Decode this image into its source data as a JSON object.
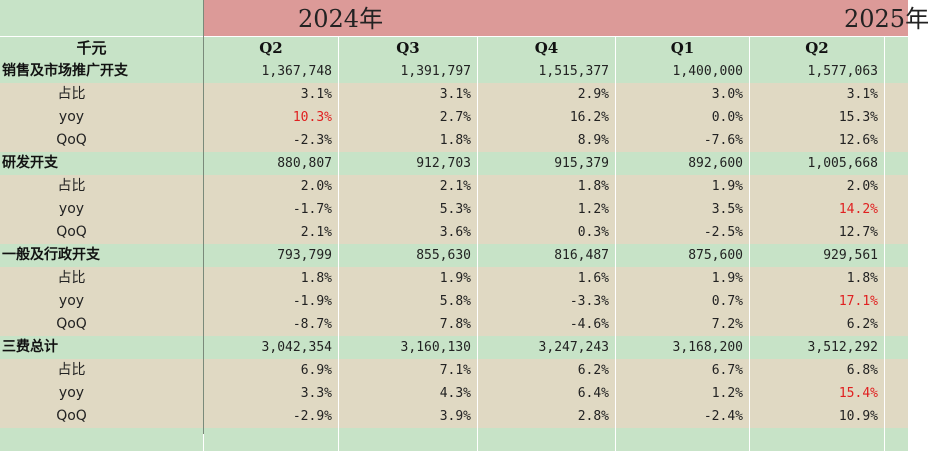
{
  "years": {
    "y2024": "2024年",
    "y2025": "2025年"
  },
  "header": {
    "unit": "千元",
    "quarters": [
      "Q2",
      "Q3",
      "Q4",
      "Q1",
      "Q2"
    ]
  },
  "rows": [
    {
      "label": "销售及市场推广开支",
      "kind": "main",
      "values": [
        "1,367,748",
        "1,391,797",
        "1,515,377",
        "1,400,000",
        "1,577,063"
      ],
      "red": []
    },
    {
      "label": "占比",
      "kind": "sub",
      "values": [
        "3.1%",
        "3.1%",
        "2.9%",
        "3.0%",
        "3.1%"
      ],
      "red": []
    },
    {
      "label": "yoy",
      "kind": "sub",
      "values": [
        "10.3%",
        "2.7%",
        "16.2%",
        "0.0%",
        "15.3%"
      ],
      "red": [
        0
      ]
    },
    {
      "label": "QoQ",
      "kind": "sub",
      "values": [
        "-2.3%",
        "1.8%",
        "8.9%",
        "-7.6%",
        "12.6%"
      ],
      "red": []
    },
    {
      "label": "研发开支",
      "kind": "main",
      "values": [
        "880,807",
        "912,703",
        "915,379",
        "892,600",
        "1,005,668"
      ],
      "red": []
    },
    {
      "label": "占比",
      "kind": "sub",
      "values": [
        "2.0%",
        "2.1%",
        "1.8%",
        "1.9%",
        "2.0%"
      ],
      "red": []
    },
    {
      "label": "yoy",
      "kind": "sub",
      "values": [
        "-1.7%",
        "5.3%",
        "1.2%",
        "3.5%",
        "14.2%"
      ],
      "red": [
        4
      ]
    },
    {
      "label": "QoQ",
      "kind": "sub",
      "values": [
        "2.1%",
        "3.6%",
        "0.3%",
        "-2.5%",
        "12.7%"
      ],
      "red": []
    },
    {
      "label": "一般及行政开支",
      "kind": "main",
      "values": [
        "793,799",
        "855,630",
        "816,487",
        "875,600",
        "929,561"
      ],
      "red": []
    },
    {
      "label": "占比",
      "kind": "sub",
      "values": [
        "1.8%",
        "1.9%",
        "1.6%",
        "1.9%",
        "1.8%"
      ],
      "red": []
    },
    {
      "label": "yoy",
      "kind": "sub",
      "values": [
        "-1.9%",
        "5.8%",
        "-3.3%",
        "0.7%",
        "17.1%"
      ],
      "red": [
        4
      ]
    },
    {
      "label": "QoQ",
      "kind": "sub",
      "values": [
        "-8.7%",
        "7.8%",
        "-4.6%",
        "7.2%",
        "6.2%"
      ],
      "red": []
    },
    {
      "label": "三费总计",
      "kind": "main",
      "values": [
        "3,042,354",
        "3,160,130",
        "3,247,243",
        "3,168,200",
        "3,512,292"
      ],
      "red": []
    },
    {
      "label": "占比",
      "kind": "sub",
      "values": [
        "6.9%",
        "7.1%",
        "6.2%",
        "6.7%",
        "6.8%"
      ],
      "red": []
    },
    {
      "label": "yoy",
      "kind": "sub",
      "values": [
        "3.3%",
        "4.3%",
        "6.4%",
        "1.2%",
        "15.4%"
      ],
      "red": [
        4
      ]
    },
    {
      "label": "QoQ",
      "kind": "sub",
      "values": [
        "-2.9%",
        "3.9%",
        "2.8%",
        "-2.4%",
        "10.9%"
      ],
      "red": []
    }
  ],
  "colors": {
    "green": "#c7e3c7",
    "tan": "#e0d9c3",
    "year_band": "#dc9a98",
    "negative_highlight": "#e02020"
  }
}
